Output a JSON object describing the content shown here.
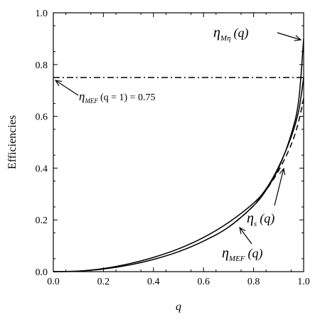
{
  "chart_data": {
    "type": "line",
    "title": "",
    "xlabel": "q",
    "ylabel": "Efficiencies",
    "xlim": [
      0.0,
      1.0
    ],
    "ylim": [
      0.0,
      1.0
    ],
    "x_ticks": [
      "0.0",
      "0.2",
      "0.4",
      "0.6",
      "0.8",
      "1.0"
    ],
    "y_ticks": [
      "0.0",
      "0.2",
      "0.4",
      "0.6",
      "0.8",
      "1.0"
    ],
    "grid": false,
    "legend": "none",
    "series": [
      {
        "style": "solid",
        "x": [
          0.0,
          0.1,
          0.2,
          0.3,
          0.4,
          0.5,
          0.6,
          0.7,
          0.8,
          0.85,
          0.9,
          0.95,
          0.98,
          1.0
        ],
        "y": [
          0.0,
          0.002,
          0.01,
          0.025,
          0.047,
          0.077,
          0.118,
          0.172,
          0.255,
          0.315,
          0.4,
          0.53,
          0.66,
          0.9
        ]
      },
      {
        "style": "solid",
        "x": [
          0.0,
          0.1,
          0.2,
          0.3,
          0.4,
          0.5,
          0.6,
          0.7,
          0.8,
          0.85,
          0.9,
          0.95,
          0.98,
          1.0
        ],
        "y": [
          0.0,
          0.002,
          0.012,
          0.03,
          0.055,
          0.088,
          0.132,
          0.19,
          0.265,
          0.32,
          0.405,
          0.52,
          0.62,
          0.75
        ]
      },
      {
        "style": "dashed",
        "x": [
          0.7,
          0.75,
          0.8,
          0.85,
          0.9,
          0.95,
          0.98,
          1.0
        ],
        "y": [
          0.172,
          0.21,
          0.255,
          0.315,
          0.39,
          0.49,
          0.58,
          0.67
        ]
      },
      {
        "style": "dashdot",
        "x": [
          0.0,
          1.0
        ],
        "y": [
          0.75,
          0.75
        ]
      }
    ],
    "annotations": [
      {
        "key": "m_eta",
        "point": [
          1.0,
          0.9
        ],
        "main": "η",
        "sub": "Mη",
        "tail": "(q)"
      },
      {
        "key": "mef_q1",
        "point": [
          0.0,
          0.75
        ],
        "main": "η",
        "sub": "MEF",
        "tail": "(q = 1) = 0.75"
      },
      {
        "key": "s",
        "point": [
          0.92,
          0.4
        ],
        "main": "η",
        "sub": "s",
        "tail": "(q)"
      },
      {
        "key": "mef",
        "point": [
          0.78,
          0.21
        ],
        "main": "η",
        "sub": "MEF",
        "tail": "(q)"
      }
    ]
  }
}
